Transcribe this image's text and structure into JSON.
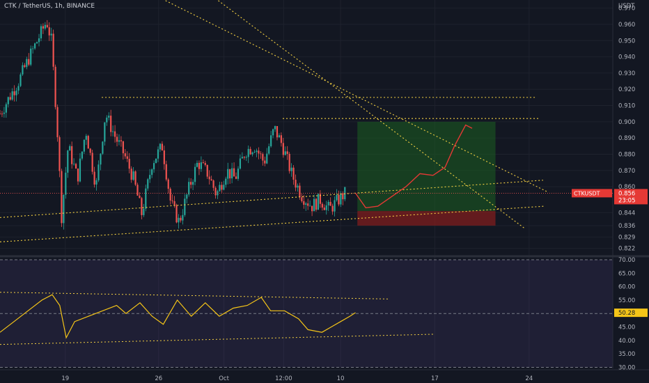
{
  "header": {
    "symbol_title": "CTK / TetherUS, 1h, BINANCE",
    "currency": "USDT"
  },
  "chart_data": [
    {
      "type": "candlestick",
      "title": "CTK / TetherUS, 1h, BINANCE",
      "ylabel": "USDT",
      "ylim": [
        0.818,
        0.975
      ],
      "yticks": [
        "0.970",
        "0.960",
        "0.950",
        "0.940",
        "0.930",
        "0.920",
        "0.910",
        "0.900",
        "0.890",
        "0.880",
        "0.870",
        "0.860",
        "0.844",
        "0.836",
        "0.829",
        "0.822"
      ],
      "xticks": [
        "19",
        "26",
        "Oct",
        "12:00",
        "10",
        "17",
        "24"
      ],
      "price_path": [
        {
          "day": 0,
          "price": 0.905
        },
        {
          "day": 1,
          "price": 0.915
        },
        {
          "day": 2,
          "price": 0.925
        },
        {
          "day": 3,
          "price": 0.938
        },
        {
          "day": 4,
          "price": 0.95
        },
        {
          "day": 5,
          "price": 0.962
        },
        {
          "day": 5.5,
          "price": 0.95
        },
        {
          "day": 6.1,
          "price": 0.9
        },
        {
          "day": 6.6,
          "price": 0.842
        },
        {
          "day": 7.3,
          "price": 0.885
        },
        {
          "day": 8.3,
          "price": 0.865
        },
        {
          "day": 9.2,
          "price": 0.895
        },
        {
          "day": 10.3,
          "price": 0.86
        },
        {
          "day": 11.3,
          "price": 0.905
        },
        {
          "day": 12.4,
          "price": 0.89
        },
        {
          "day": 13.3,
          "price": 0.88
        },
        {
          "day": 14.3,
          "price": 0.865
        },
        {
          "day": 15.2,
          "price": 0.843
        },
        {
          "day": 16.3,
          "price": 0.875
        },
        {
          "day": 17.4,
          "price": 0.885
        },
        {
          "day": 18.3,
          "price": 0.85
        },
        {
          "day": 19.2,
          "price": 0.838
        },
        {
          "day": 20.3,
          "price": 0.86
        },
        {
          "day": 21.2,
          "price": 0.875
        },
        {
          "day": 22.3,
          "price": 0.868
        },
        {
          "day": 23.2,
          "price": 0.855
        },
        {
          "day": 24.3,
          "price": 0.87
        },
        {
          "day": 25.2,
          "price": 0.865
        },
        {
          "day": 26.3,
          "price": 0.882
        },
        {
          "day": 27.3,
          "price": 0.885
        },
        {
          "day": 28.3,
          "price": 0.875
        },
        {
          "day": 29.4,
          "price": 0.896
        },
        {
          "day": 30.3,
          "price": 0.885
        },
        {
          "day": 31.3,
          "price": 0.867
        },
        {
          "day": 32.3,
          "price": 0.855
        },
        {
          "day": 33.4,
          "price": 0.848
        },
        {
          "day": 34.3,
          "price": 0.852
        },
        {
          "day": 35.3,
          "price": 0.846
        },
        {
          "day": 36.3,
          "price": 0.852
        },
        {
          "day": 37,
          "price": 0.856
        }
      ],
      "last_price": 0.856,
      "last_price_tag": "CTKUSDT",
      "last_price_value": "0.856",
      "countdown": "23:05",
      "up_color": "#26a69a",
      "down_color": "#ef5350",
      "trendlines": [
        {
          "kind": "horizontal",
          "from_day": 10.9,
          "to_day": 57.5,
          "price": 0.915
        },
        {
          "kind": "horizontal",
          "from_day": 30.3,
          "to_day": 57.7,
          "price": 0.902
        },
        {
          "kind": "ascending-support",
          "from_day": 0,
          "to_day": 58.2,
          "price_from": 0.841,
          "price_to": 0.864
        },
        {
          "kind": "ascending-support",
          "from_day": 0,
          "to_day": 58.4,
          "price_from": 0.826,
          "price_to": 0.848
        },
        {
          "kind": "descending-resistance",
          "from_day": 12.4,
          "to_day": 58.6,
          "price_from": 0.99,
          "price_to": 0.857
        },
        {
          "kind": "descending-resistance",
          "from_day": 19.8,
          "to_day": 56.3,
          "price_from": 0.99,
          "price_to": 0.834
        }
      ],
      "long_position": {
        "from_day": 38.3,
        "to_day": 53.1,
        "entry": 0.845,
        "target": 0.9,
        "stop": 0.836,
        "profit_color": "#1b5e20",
        "loss_color": "#7f1d1d"
      },
      "projection": {
        "color": "#e53935",
        "path": [
          {
            "day": 38.1,
            "price": 0.856
          },
          {
            "day": 39.2,
            "price": 0.847
          },
          {
            "day": 40.5,
            "price": 0.848
          },
          {
            "day": 42,
            "price": 0.854
          },
          {
            "day": 43.5,
            "price": 0.86
          },
          {
            "day": 45,
            "price": 0.868
          },
          {
            "day": 46.4,
            "price": 0.867
          },
          {
            "day": 47.7,
            "price": 0.872
          },
          {
            "day": 48.7,
            "price": 0.885
          },
          {
            "day": 49.9,
            "price": 0.898
          },
          {
            "day": 50.6,
            "price": 0.896
          }
        ]
      }
    },
    {
      "type": "line",
      "title": "",
      "series": [
        {
          "color": "#f5c518",
          "y": [
            {
              "day": 0,
              "value": 43
            },
            {
              "day": 1.5,
              "value": 47
            },
            {
              "day": 3,
              "value": 51
            },
            {
              "day": 4.5,
              "value": 55
            },
            {
              "day": 5.6,
              "value": 57
            },
            {
              "day": 6.4,
              "value": 53
            },
            {
              "day": 7.1,
              "value": 41
            },
            {
              "day": 8,
              "value": 47
            },
            {
              "day": 9.5,
              "value": 49
            },
            {
              "day": 11,
              "value": 51
            },
            {
              "day": 12.5,
              "value": 53
            },
            {
              "day": 13.5,
              "value": 50
            },
            {
              "day": 15,
              "value": 54
            },
            {
              "day": 16.3,
              "value": 49
            },
            {
              "day": 17.5,
              "value": 46
            },
            {
              "day": 19,
              "value": 55
            },
            {
              "day": 20.5,
              "value": 49
            },
            {
              "day": 22,
              "value": 54
            },
            {
              "day": 23.5,
              "value": 49
            },
            {
              "day": 25,
              "value": 52
            },
            {
              "day": 26.5,
              "value": 53
            },
            {
              "day": 28,
              "value": 56
            },
            {
              "day": 29,
              "value": 51
            },
            {
              "day": 30.5,
              "value": 51
            },
            {
              "day": 32,
              "value": 48
            },
            {
              "day": 33,
              "value": 44
            },
            {
              "day": 34.5,
              "value": 43
            },
            {
              "day": 35.5,
              "value": 45
            },
            {
              "day": 36.5,
              "value": 47
            },
            {
              "day": 37.5,
              "value": 49
            },
            {
              "day": 38.1,
              "value": 50.3
            }
          ]
        }
      ],
      "ylim": [
        29.6,
        71.8
      ],
      "yticks": [
        "70.00",
        "65.00",
        "60.00",
        "55.00",
        "50.00",
        "45.00",
        "40.00",
        "35.00",
        "30.00"
      ],
      "current_value": "50.28",
      "band_upper": 70,
      "band_mid": 50,
      "band_lower": 30,
      "trendlines": [
        {
          "from_day": 0,
          "to_day": 41.6,
          "value_from": 57.9,
          "value_to": 55.4
        },
        {
          "from_day": 0,
          "to_day": 46.6,
          "value_from": 38.5,
          "value_to": 42.3
        }
      ]
    }
  ]
}
